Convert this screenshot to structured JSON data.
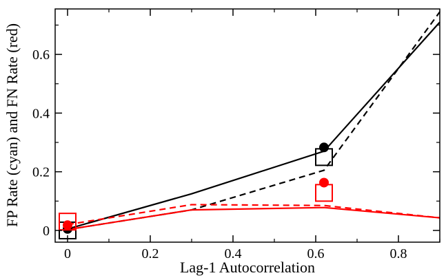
{
  "chart_data": {
    "type": "line",
    "title": "",
    "xlabel": "Lag-1 Autocorrelation",
    "ylabel": "FP Rate (cyan) and  FN Rate (red)",
    "xlim": [
      -0.03,
      0.9
    ],
    "ylim": [
      -0.04,
      0.755
    ],
    "xticks": [
      0,
      0.2,
      0.4,
      0.6,
      0.8
    ],
    "xtick_labels": [
      "0",
      "0.2",
      "0.4",
      "0.6",
      "0.8"
    ],
    "yticks": [
      0,
      0.2,
      0.4,
      0.6
    ],
    "ytick_labels": [
      "0",
      "0.2",
      "0.4",
      "0.6"
    ],
    "grid": false,
    "series": [
      {
        "color": "#000000",
        "style": "solid",
        "marker": "none",
        "x": [
          0,
          0.3,
          0.62,
          0.9
        ],
        "y": [
          0.005,
          0.125,
          0.27,
          0.71
        ]
      },
      {
        "color": "#000000",
        "style": "dashed",
        "marker": "none",
        "x": [
          0,
          0.3,
          0.62,
          0.9
        ],
        "y": [
          0.003,
          0.07,
          0.205,
          0.745
        ]
      },
      {
        "color": "#ff0000",
        "style": "solid",
        "marker": "none",
        "x": [
          0,
          0.3,
          0.62,
          0.9
        ],
        "y": [
          0.003,
          0.07,
          0.078,
          0.043
        ]
      },
      {
        "color": "#ff0000",
        "style": "dashed",
        "marker": "none",
        "x": [
          0,
          0.3,
          0.62,
          0.9
        ],
        "y": [
          0.02,
          0.088,
          0.085,
          0.043
        ]
      },
      {
        "color": "#000000",
        "style": "none",
        "marker": "circle",
        "x": [
          0,
          0.62
        ],
        "y": [
          0.005,
          0.283
        ]
      },
      {
        "color": "#000000",
        "style": "none",
        "marker": "square",
        "x": [
          0,
          0.62
        ],
        "y": [
          0.0,
          0.25
        ]
      },
      {
        "color": "#ff0000",
        "style": "none",
        "marker": "circle",
        "x": [
          0,
          0.62
        ],
        "y": [
          0.018,
          0.163
        ]
      },
      {
        "color": "#ff0000",
        "style": "none",
        "marker": "square",
        "x": [
          0,
          0.62
        ],
        "y": [
          0.03,
          0.128
        ]
      }
    ]
  }
}
